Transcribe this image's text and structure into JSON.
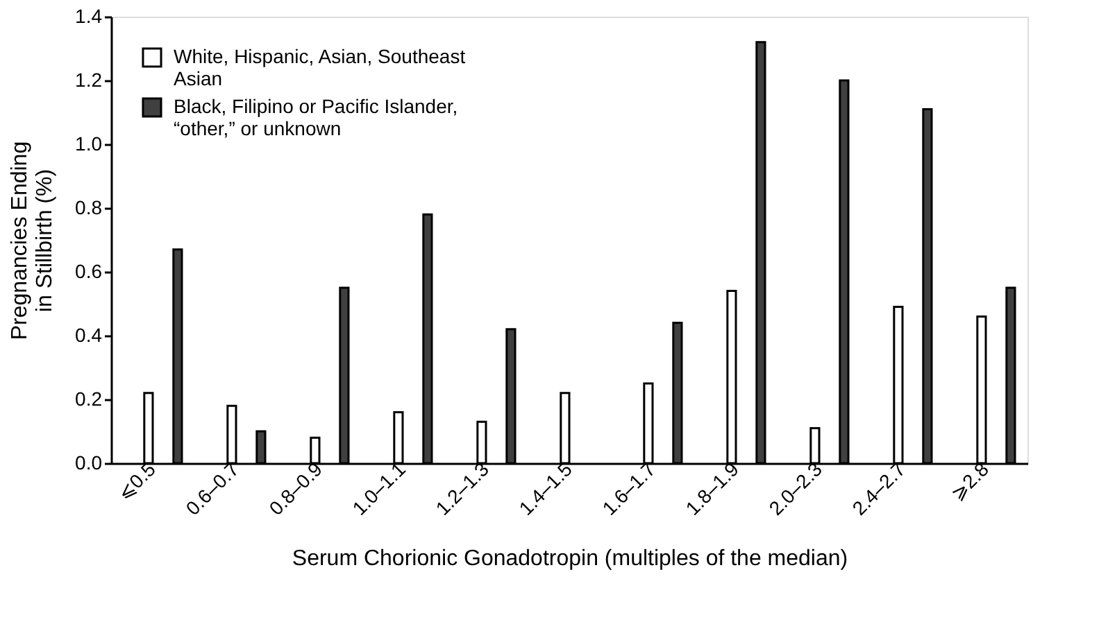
{
  "chart_data": {
    "type": "bar",
    "xlabel": "Serum Chorionic Gonadotropin (multiples of the median)",
    "ylabel": "Pregnancies Ending in Stillbirth (%)",
    "categories": [
      "⩽0.5",
      "0.6–0.7",
      "0.8–0.9",
      "1.0–1.1",
      "1.2–1.3",
      "1.4–1.5",
      "1.6–1.7",
      "1.8–1.9",
      "2.0–2.3",
      "2.4–2.7",
      "⩾2.8"
    ],
    "series": [
      {
        "name": "White, Hispanic, Asian, Southeast Asian",
        "color": "#ffffff",
        "values": [
          0.22,
          0.18,
          0.08,
          0.16,
          0.13,
          0.22,
          0.25,
          0.54,
          0.11,
          0.49,
          0.46
        ]
      },
      {
        "name": "Black, Filipino or Pacific Islander, “other,” or unknown",
        "color": "#404040",
        "values": [
          0.67,
          0.1,
          0.55,
          0.78,
          0.42,
          null,
          0.44,
          1.32,
          1.2,
          1.11,
          0.55
        ]
      }
    ],
    "ylim": [
      0,
      1.4
    ],
    "yticks": [
      {
        "value": 0,
        "label": "0.0"
      },
      {
        "value": 0.2,
        "label": "0.2"
      },
      {
        "value": 0.4,
        "label": "0.4"
      },
      {
        "value": 0.6,
        "label": "0.6"
      },
      {
        "value": 0.8,
        "label": "0.8"
      },
      {
        "value": 1.0,
        "label": "1.0"
      },
      {
        "value": 1.2,
        "label": "1.2"
      },
      {
        "value": 1.4,
        "label": "1.4"
      }
    ],
    "legend": "top left",
    "grid": false
  }
}
